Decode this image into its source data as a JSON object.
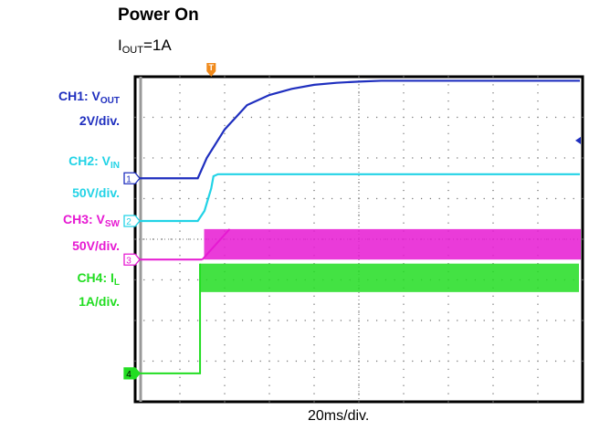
{
  "title": "Power On",
  "condition": {
    "main": "I",
    "sub": "OUT",
    "rest": "=1A"
  },
  "channels": [
    {
      "id": "1",
      "name_main": "CH1: V",
      "name_sub": "OUT",
      "scale": "2V/div.",
      "color": "#1f2fbf"
    },
    {
      "id": "2",
      "name_main": "CH2: V",
      "name_sub": "IN",
      "scale": "50V/div.",
      "color": "#22d3e6"
    },
    {
      "id": "3",
      "name_main": "CH3: V",
      "name_sub": "SW",
      "scale": "50V/div.",
      "color": "#e619d2"
    },
    {
      "id": "4",
      "name_main": "CH4: I",
      "name_sub": "L",
      "scale": "1A/div.",
      "color": "#22dd22"
    }
  ],
  "trigger_marker": "T",
  "chart_data": {
    "type": "line",
    "xlabel": "20ms/div.",
    "grid": true,
    "x_divisions": 10,
    "y_divisions": 8,
    "time_per_div_ms": 20,
    "trigger_time_div": 1.7,
    "series": [
      {
        "name": "CH1: VOUT",
        "color": "#1f2fbf",
        "baseline_div": 2.5,
        "points_div": [
          [
            0,
            2.5
          ],
          [
            1.4,
            2.5
          ],
          [
            1.6,
            2.0
          ],
          [
            2.0,
            1.3
          ],
          [
            2.5,
            0.7
          ],
          [
            3.0,
            0.45
          ],
          [
            3.5,
            0.3
          ],
          [
            4.0,
            0.2
          ],
          [
            4.5,
            0.15
          ],
          [
            5.0,
            0.12
          ],
          [
            5.5,
            0.1
          ],
          [
            6.0,
            0.1
          ]
        ]
      },
      {
        "name": "CH2: VIN",
        "color": "#22d3e6",
        "baseline_div": 3.55,
        "points_div": [
          [
            0,
            3.55
          ],
          [
            1.4,
            3.55
          ],
          [
            1.55,
            3.3
          ],
          [
            1.7,
            2.75
          ],
          [
            1.75,
            2.45
          ],
          [
            1.85,
            2.4
          ],
          [
            6.0,
            2.4
          ]
        ]
      },
      {
        "name": "CH3: VSW",
        "color": "#e619d2",
        "baseline_div": 4.5,
        "switching": {
          "start_div": 1.5,
          "low_div": 4.5,
          "high_div": 3.75
        }
      },
      {
        "name": "CH4: IL",
        "color": "#22dd22",
        "baseline_div": 7.3,
        "switching": {
          "start_div": 1.45,
          "low_div": 5.3,
          "high_div": 4.75
        }
      }
    ]
  }
}
